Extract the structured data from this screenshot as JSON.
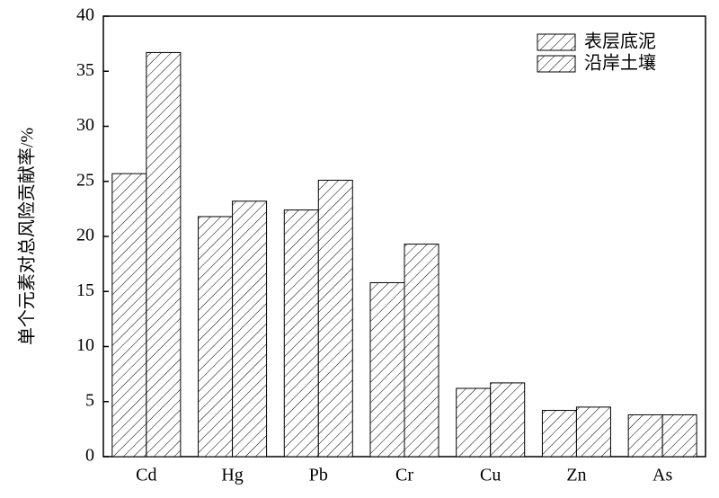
{
  "chart_data": {
    "type": "bar",
    "y_label": "单个元素对总风险贡献率/%",
    "categories": [
      "Cd",
      "Hg",
      "Pb",
      "Cr",
      "Cu",
      "Zn",
      "As"
    ],
    "series": [
      {
        "name": "表层底泥",
        "color": "#000000",
        "values": [
          25.7,
          21.8,
          22.4,
          15.8,
          6.2,
          4.2,
          3.8
        ]
      },
      {
        "name": "沿岸土壤",
        "color": "#000000",
        "values": [
          36.7,
          23.2,
          25.1,
          19.3,
          6.7,
          4.5,
          3.8
        ]
      }
    ],
    "ylim": [
      0,
      40
    ],
    "yticks": [
      0,
      5,
      10,
      15,
      20,
      25,
      30,
      35,
      40
    ],
    "legend": "upper right"
  }
}
